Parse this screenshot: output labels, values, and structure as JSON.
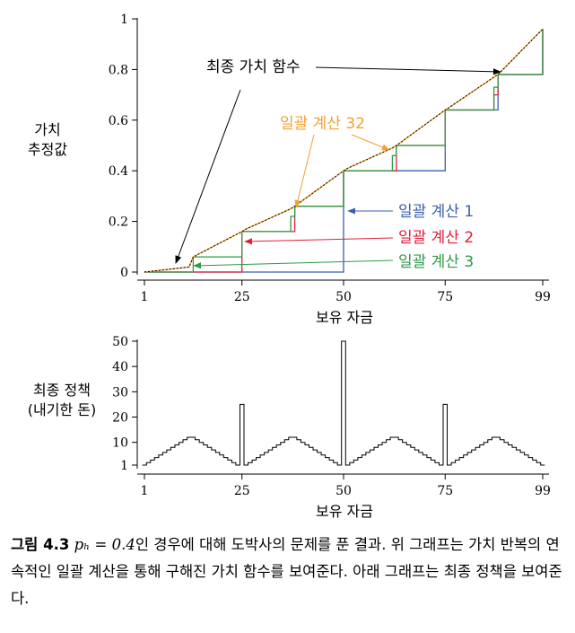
{
  "chart_data": [
    {
      "type": "line",
      "title": "",
      "xlabel": "보유 자금",
      "ylabel": [
        "가치",
        "추정값"
      ],
      "xlim": [
        1,
        99
      ],
      "ylim": [
        0,
        1
      ],
      "xticks": [
        "1",
        "25",
        "50",
        "75",
        "99"
      ],
      "yticks": [
        "0",
        "0.2",
        "0.4",
        "0.6",
        "0.8",
        "1"
      ],
      "x": [
        1,
        12,
        13,
        25,
        26,
        37,
        38,
        50,
        51,
        62,
        63,
        75,
        76,
        87,
        88,
        99
      ],
      "series": [
        {
          "name": "일괄 계산 1",
          "color": "#3a5fb0",
          "values": [
            0,
            0,
            0,
            0,
            0,
            0,
            0,
            0.4,
            0.4,
            0.4,
            0.4,
            0.64,
            0.64,
            0.64,
            0.78,
            0.96
          ]
        },
        {
          "name": "일괄 계산 2",
          "color": "#e0203a",
          "values": [
            0,
            0,
            0,
            0.16,
            0.16,
            0.16,
            0.26,
            0.4,
            0.4,
            0.4,
            0.5,
            0.64,
            0.64,
            0.7,
            0.78,
            0.96
          ]
        },
        {
          "name": "일괄 계산 3",
          "color": "#2e9a45",
          "values": [
            0,
            0,
            0.06,
            0.16,
            0.16,
            0.22,
            0.26,
            0.4,
            0.4,
            0.46,
            0.5,
            0.64,
            0.64,
            0.73,
            0.78,
            0.96
          ]
        },
        {
          "name": "일괄 계산 32",
          "color": "#f4a030",
          "values": [
            0,
            0.02,
            0.06,
            0.16,
            0.17,
            0.25,
            0.26,
            0.4,
            0.41,
            0.49,
            0.5,
            0.64,
            0.65,
            0.77,
            0.78,
            0.96
          ]
        },
        {
          "name": "최종 가치 함수",
          "color": "#000000",
          "values": [
            0,
            0.02,
            0.06,
            0.16,
            0.17,
            0.25,
            0.26,
            0.4,
            0.41,
            0.49,
            0.5,
            0.64,
            0.65,
            0.77,
            0.78,
            0.96
          ]
        }
      ],
      "annotations": [
        "최종 가치 함수",
        "일괄 계산 32",
        "일괄 계산 1",
        "일괄 계산 2",
        "일괄 계산 3"
      ]
    },
    {
      "type": "bar",
      "title": "",
      "xlabel": "보유 자금",
      "ylabel": [
        "최종 정책",
        "(내기한 돈)"
      ],
      "xlim": [
        1,
        99
      ],
      "ylim": [
        1,
        50
      ],
      "xticks": [
        "1",
        "25",
        "50",
        "75",
        "99"
      ],
      "yticks": [
        "1",
        "10",
        "20",
        "30",
        "40",
        "50"
      ],
      "policy": [
        1,
        2,
        3,
        4,
        5,
        6,
        7,
        8,
        9,
        10,
        11,
        12,
        12,
        11,
        10,
        9,
        8,
        7,
        6,
        5,
        4,
        3,
        2,
        1,
        25,
        1,
        2,
        3,
        4,
        5,
        6,
        7,
        8,
        9,
        10,
        11,
        12,
        12,
        11,
        10,
        9,
        8,
        7,
        6,
        5,
        4,
        3,
        2,
        1,
        50,
        1,
        2,
        3,
        4,
        5,
        6,
        7,
        8,
        9,
        10,
        11,
        12,
        12,
        11,
        10,
        9,
        8,
        7,
        6,
        5,
        4,
        3,
        2,
        1,
        25,
        1,
        2,
        3,
        4,
        5,
        6,
        7,
        8,
        9,
        10,
        11,
        12,
        12,
        11,
        10,
        9,
        8,
        7,
        6,
        5,
        4,
        3,
        2,
        1
      ]
    }
  ],
  "caption": {
    "label": "그림 4.3",
    "math": "pₕ = 0.4",
    "text": "인 경우에 대해 도박사의 문제를 푼 결과. 위 그래프는 가치 반복의 연속적인 일괄 계산을 통해 구해진 가치 함수를 보여준다. 아래 그래프는 최종 정책을 보여준다."
  }
}
